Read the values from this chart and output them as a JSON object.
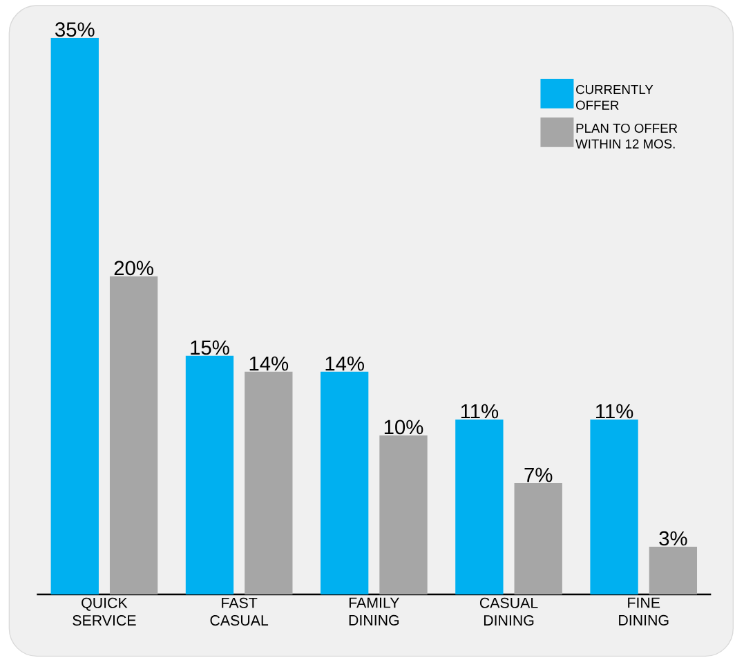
{
  "chart_data": {
    "type": "bar",
    "categories": [
      "QUICK SERVICE",
      "FAST CASUAL",
      "FAMILY DINING",
      "CASUAL DINING",
      "FINE DINING"
    ],
    "series": [
      {
        "name": "CURRENTLY OFFER",
        "color": "#00b0f0",
        "values": [
          35,
          15,
          14,
          11,
          11
        ],
        "value_labels": [
          "35%",
          "15%",
          "14%",
          "11%",
          "11%"
        ]
      },
      {
        "name": "PLAN TO OFFER WITHIN 12 MOS.",
        "color": "#a6a6a6",
        "values": [
          20,
          14,
          10,
          7,
          3
        ],
        "value_labels": [
          "20%",
          "14%",
          "10%",
          "7%",
          "3%"
        ]
      }
    ],
    "legend": "top right"
  }
}
